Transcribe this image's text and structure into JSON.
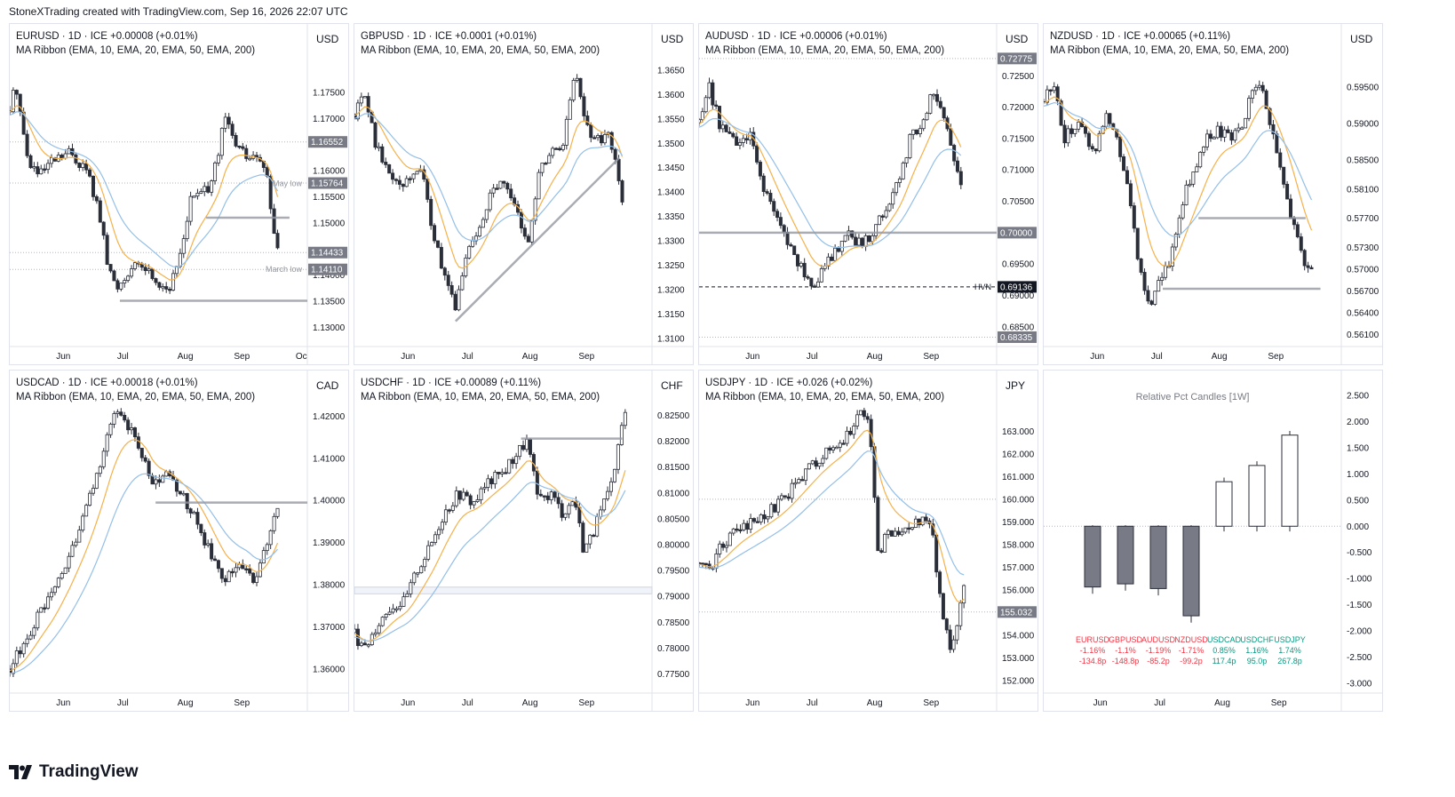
{
  "header": {
    "title": "StoneXTrading created with TradingView.com, Sep 16, 2026 22:07 UTC"
  },
  "brand": {
    "name": "TradingView"
  },
  "colors": {
    "candle_up": "#ffffff",
    "candle_down": "#2a2e39",
    "ema10": "#f5b14a",
    "ema20": "#94bfe8",
    "level": "#9598a1",
    "grid": "#f0f3fa",
    "label_bg": "#787b86",
    "negative": "#f23645",
    "positive": "#089981"
  },
  "panels": [
    {
      "symbol": "EURUSD",
      "header": "EURUSD · 1D · ICE  +0.00008 (+0.01%)",
      "study": "MA Ribbon (EMA, 10, EMA, 20, EMA, 50, EMA, 200)",
      "currency": "USD",
      "yticks": [
        "1.17500",
        "1.17000",
        "1.16000",
        "1.15500",
        "1.15000",
        "1.14000",
        "1.13500",
        "1.13000"
      ],
      "ymin": 1.1265,
      "ymax": 1.183,
      "xticks": [
        "Jun",
        "Jul",
        "Aug",
        "Sep",
        "Oc"
      ],
      "badges": [
        {
          "text": "1.16552",
          "v": 1.16552
        },
        {
          "text": "1.15764",
          "v": 1.15764
        },
        {
          "text": "1.14433",
          "v": 1.14433
        },
        {
          "text": "1.14110",
          "v": 1.1411
        }
      ],
      "annotations": [
        "May low",
        "March low"
      ],
      "hlines": [
        {
          "v": 1.1351,
          "from": 0.37,
          "to": 1.0
        },
        {
          "v": 1.151,
          "from": 0.66,
          "to": 0.94
        }
      ],
      "dotted": [
        1.16552,
        1.15764,
        1.14433,
        1.1411
      ],
      "path": [
        [
          0,
          1.1715
        ],
        [
          0.02,
          1.177
        ],
        [
          0.06,
          1.162
        ],
        [
          0.1,
          1.159
        ],
        [
          0.14,
          1.1615
        ],
        [
          0.2,
          1.1635
        ],
        [
          0.26,
          1.16
        ],
        [
          0.3,
          1.152
        ],
        [
          0.33,
          1.1415
        ],
        [
          0.36,
          1.1375
        ],
        [
          0.4,
          1.141
        ],
        [
          0.45,
          1.1418
        ],
        [
          0.5,
          1.1385
        ],
        [
          0.54,
          1.1375
        ],
        [
          0.57,
          1.1435
        ],
        [
          0.61,
          1.155
        ],
        [
          0.66,
          1.156
        ],
        [
          0.7,
          1.162
        ],
        [
          0.72,
          1.1705
        ],
        [
          0.76,
          1.165
        ],
        [
          0.8,
          1.1625
        ],
        [
          0.84,
          1.162
        ],
        [
          0.87,
          1.1575
        ],
        [
          0.89,
          1.146
        ],
        [
          0.9,
          1.1443
        ]
      ]
    },
    {
      "symbol": "GBPUSD",
      "header": "GBPUSD · 1D · ICE  +0.0001 (+0.01%)",
      "study": "MA Ribbon (EMA, 10, EMA, 20, EMA, 50, EMA, 200)",
      "currency": "USD",
      "yticks": [
        "1.3650",
        "1.3600",
        "1.3550",
        "1.3500",
        "1.3450",
        "1.3400",
        "1.3350",
        "1.3300",
        "1.3250",
        "1.3200",
        "1.3150",
        "1.3100"
      ],
      "ymin": 1.3085,
      "ymax": 1.369,
      "xticks": [
        "Jun",
        "Jul",
        "Aug",
        "Sep"
      ],
      "badges": [],
      "annotations": [],
      "hlines": [],
      "dotted": [],
      "trendline": [
        [
          0.34,
          1.3135
        ],
        [
          0.89,
          1.347
        ]
      ],
      "path": [
        [
          0,
          1.356
        ],
        [
          0.03,
          1.362
        ],
        [
          0.07,
          1.35
        ],
        [
          0.12,
          1.344
        ],
        [
          0.17,
          1.342
        ],
        [
          0.22,
          1.346
        ],
        [
          0.27,
          1.33
        ],
        [
          0.31,
          1.321
        ],
        [
          0.34,
          1.316
        ],
        [
          0.37,
          1.326
        ],
        [
          0.42,
          1.333
        ],
        [
          0.47,
          1.342
        ],
        [
          0.52,
          1.34
        ],
        [
          0.56,
          1.333
        ],
        [
          0.58,
          1.329
        ],
        [
          0.62,
          1.344
        ],
        [
          0.66,
          1.348
        ],
        [
          0.7,
          1.35
        ],
        [
          0.72,
          1.356
        ],
        [
          0.74,
          1.365
        ],
        [
          0.77,
          1.356
        ],
        [
          0.81,
          1.35
        ],
        [
          0.85,
          1.352
        ],
        [
          0.88,
          1.347
        ],
        [
          0.9,
          1.338
        ]
      ]
    },
    {
      "symbol": "AUDUSD",
      "header": "AUDUSD · 1D · ICE  +0.00006 (+0.01%)",
      "study": "MA Ribbon (EMA, 10, EMA, 20, EMA, 50, EMA, 200)",
      "currency": "USD",
      "yticks": [
        "0.72500",
        "0.72000",
        "0.71500",
        "0.71000",
        "0.70500",
        "0.70000",
        "0.69500",
        "0.69000",
        "0.68500"
      ],
      "ymin": 0.682,
      "ymax": 0.729,
      "xticks": [
        "Jun",
        "Jul",
        "Aug",
        "Sep"
      ],
      "badges": [
        {
          "text": "0.72775",
          "v": 0.72775
        },
        {
          "text": "0.70000",
          "v": 0.7
        },
        {
          "text": "0.69136",
          "v": 0.69136,
          "dark": true
        },
        {
          "text": "0.68335",
          "v": 0.68335
        }
      ],
      "annotations": [
        "HVN"
      ],
      "hlines": [
        {
          "v": 0.7,
          "from": 0.0,
          "to": 1.0
        }
      ],
      "dashed": [
        0.69136
      ],
      "dotted": [
        0.72775,
        0.68335
      ],
      "path": [
        [
          0,
          0.7175
        ],
        [
          0.03,
          0.724
        ],
        [
          0.07,
          0.717
        ],
        [
          0.12,
          0.714
        ],
        [
          0.17,
          0.7155
        ],
        [
          0.21,
          0.708
        ],
        [
          0.26,
          0.702
        ],
        [
          0.31,
          0.6975
        ],
        [
          0.35,
          0.694
        ],
        [
          0.38,
          0.6915
        ],
        [
          0.42,
          0.6945
        ],
        [
          0.46,
          0.6975
        ],
        [
          0.5,
          0.6995
        ],
        [
          0.55,
          0.698
        ],
        [
          0.58,
          0.7
        ],
        [
          0.63,
          0.7045
        ],
        [
          0.67,
          0.708
        ],
        [
          0.71,
          0.715
        ],
        [
          0.75,
          0.718
        ],
        [
          0.79,
          0.723
        ],
        [
          0.82,
          0.7185
        ],
        [
          0.85,
          0.713
        ],
        [
          0.88,
          0.7085
        ]
      ]
    },
    {
      "symbol": "NZDUSD",
      "header": "NZDUSD · 1D · ICE  +0.00065 (+0.11%)",
      "study": "MA Ribbon (EMA, 10, EMA, 20, EMA, 50, EMA, 200)",
      "currency": "USD",
      "yticks": [
        "0.59500",
        "0.59000",
        "0.58500",
        "0.58100",
        "0.57700",
        "0.57300",
        "0.57000",
        "0.56700",
        "0.56400",
        "0.56100"
      ],
      "ymin": 0.5595,
      "ymax": 0.6,
      "xticks": [
        "Jun",
        "Jul",
        "Aug",
        "Sep"
      ],
      "badges": [],
      "annotations": [],
      "hlines": [
        {
          "v": 0.577,
          "from": 0.52,
          "to": 0.88
        },
        {
          "v": 0.5673,
          "from": 0.4,
          "to": 0.93
        }
      ],
      "dotted": [],
      "path": [
        [
          0,
          0.593
        ],
        [
          0.03,
          0.596
        ],
        [
          0.07,
          0.588
        ],
        [
          0.12,
          0.59
        ],
        [
          0.17,
          0.586
        ],
        [
          0.21,
          0.592
        ],
        [
          0.25,
          0.587
        ],
        [
          0.29,
          0.58
        ],
        [
          0.32,
          0.57
        ],
        [
          0.35,
          0.565
        ],
        [
          0.39,
          0.568
        ],
        [
          0.43,
          0.572
        ],
        [
          0.47,
          0.58
        ],
        [
          0.51,
          0.584
        ],
        [
          0.55,
          0.588
        ],
        [
          0.59,
          0.589
        ],
        [
          0.63,
          0.588
        ],
        [
          0.67,
          0.59
        ],
        [
          0.7,
          0.595
        ],
        [
          0.73,
          0.596
        ],
        [
          0.77,
          0.588
        ],
        [
          0.8,
          0.583
        ],
        [
          0.84,
          0.576
        ],
        [
          0.87,
          0.571
        ],
        [
          0.9,
          0.57
        ]
      ]
    },
    {
      "symbol": "USDCAD",
      "header": "USDCAD · 1D · ICE  +0.00018 (+0.01%)",
      "study": "MA Ribbon (EMA, 10, EMA, 20, EMA, 50, EMA, 200)",
      "currency": "CAD",
      "yticks": [
        "1.42000",
        "1.41000",
        "1.40000",
        "1.39000",
        "1.38000",
        "1.37000",
        "1.36000"
      ],
      "ymin": 1.3545,
      "ymax": 1.4245,
      "xticks": [
        "Jun",
        "Jul",
        "Aug",
        "Sep"
      ],
      "badges": [],
      "annotations": [],
      "hlines": [
        {
          "v": 1.3995,
          "from": 0.49,
          "to": 1.0
        }
      ],
      "dotted": [],
      "path": [
        [
          0,
          1.36
        ],
        [
          0.04,
          1.365
        ],
        [
          0.09,
          1.372
        ],
        [
          0.14,
          1.377
        ],
        [
          0.2,
          1.387
        ],
        [
          0.25,
          1.396
        ],
        [
          0.3,
          1.408
        ],
        [
          0.34,
          1.419
        ],
        [
          0.37,
          1.42
        ],
        [
          0.41,
          1.417
        ],
        [
          0.44,
          1.412
        ],
        [
          0.48,
          1.403
        ],
        [
          0.52,
          1.406
        ],
        [
          0.56,
          1.403
        ],
        [
          0.6,
          1.399
        ],
        [
          0.64,
          1.393
        ],
        [
          0.68,
          1.386
        ],
        [
          0.72,
          1.381
        ],
        [
          0.75,
          1.383
        ],
        [
          0.79,
          1.385
        ],
        [
          0.82,
          1.38
        ],
        [
          0.85,
          1.386
        ],
        [
          0.88,
          1.394
        ],
        [
          0.9,
          1.399
        ]
      ]
    },
    {
      "symbol": "USDCHF",
      "header": "USDCHF · 1D · ICE  +0.00089 (+0.11%)",
      "study": "MA Ribbon (EMA, 10, EMA, 20, EMA, 50, EMA, 200)",
      "currency": "CHF",
      "yticks": [
        "0.82500",
        "0.82000",
        "0.81500",
        "0.81000",
        "0.80500",
        "0.80000",
        "0.79500",
        "0.79000",
        "0.78500",
        "0.78000",
        "0.77500"
      ],
      "ymin": 0.7715,
      "ymax": 0.8285,
      "xticks": [
        "Jun",
        "Jul",
        "Aug",
        "Sep"
      ],
      "badges": [],
      "annotations": [],
      "hlines": [
        {
          "v": 0.8205,
          "from": 0.56,
          "to": 0.9
        }
      ],
      "band": [
        0.7905,
        0.7918
      ],
      "dotted": [],
      "path": [
        [
          0,
          0.783
        ],
        [
          0.03,
          0.779
        ],
        [
          0.07,
          0.784
        ],
        [
          0.12,
          0.788
        ],
        [
          0.17,
          0.789
        ],
        [
          0.21,
          0.795
        ],
        [
          0.25,
          0.799
        ],
        [
          0.3,
          0.806
        ],
        [
          0.35,
          0.81
        ],
        [
          0.4,
          0.808
        ],
        [
          0.45,
          0.812
        ],
        [
          0.5,
          0.814
        ],
        [
          0.55,
          0.818
        ],
        [
          0.58,
          0.82
        ],
        [
          0.62,
          0.808
        ],
        [
          0.66,
          0.81
        ],
        [
          0.7,
          0.806
        ],
        [
          0.74,
          0.809
        ],
        [
          0.77,
          0.799
        ],
        [
          0.8,
          0.802
        ],
        [
          0.84,
          0.808
        ],
        [
          0.87,
          0.812
        ],
        [
          0.89,
          0.821
        ],
        [
          0.91,
          0.825
        ]
      ]
    },
    {
      "symbol": "USDJPY",
      "header": "USDJPY · 1D · ICE  +0.026 (+0.02%)",
      "study": "MA Ribbon (EMA, 10, EMA, 20, EMA, 50, EMA, 200)",
      "currency": "JPY",
      "yticks": [
        "163.000",
        "162.000",
        "161.000",
        "160.000",
        "159.000",
        "158.000",
        "157.000",
        "156.000",
        "155.000",
        "154.000",
        "153.000",
        "152.000"
      ],
      "ymin": 151.5,
      "ymax": 164.5,
      "xticks": [
        "Jun",
        "Jul",
        "Aug",
        "Sep"
      ],
      "badges": [
        {
          "text": "155.032",
          "v": 155.032
        }
      ],
      "annotations": [],
      "hlines": [],
      "dotted": [
        160.0,
        155.032
      ],
      "path": [
        [
          0,
          157.2
        ],
        [
          0.03,
          156.8
        ],
        [
          0.07,
          157.8
        ],
        [
          0.12,
          158.6
        ],
        [
          0.17,
          158.9
        ],
        [
          0.22,
          159.3
        ],
        [
          0.27,
          159.8
        ],
        [
          0.32,
          160.6
        ],
        [
          0.37,
          161.4
        ],
        [
          0.42,
          162.0
        ],
        [
          0.46,
          162.3
        ],
        [
          0.5,
          162.8
        ],
        [
          0.53,
          163.6
        ],
        [
          0.56,
          163.9
        ],
        [
          0.58,
          162.0
        ],
        [
          0.6,
          157.5
        ],
        [
          0.63,
          158.4
        ],
        [
          0.67,
          158.7
        ],
        [
          0.71,
          158.6
        ],
        [
          0.75,
          159.3
        ],
        [
          0.78,
          158.9
        ],
        [
          0.81,
          155.5
        ],
        [
          0.84,
          153.5
        ],
        [
          0.87,
          154.5
        ],
        [
          0.89,
          156.3
        ]
      ]
    }
  ],
  "relative": {
    "title": "Relative Pct Candles [1W]",
    "yticks": [
      "2.500",
      "2.000",
      "1.500",
      "1.000",
      "0.500",
      "0.000",
      "-0.500",
      "-1.000",
      "-1.500",
      "-2.000",
      "-2.500",
      "-3.000"
    ],
    "xticks": [
      "Jun",
      "Jul",
      "Aug",
      "Sep"
    ]
  },
  "chart_data": {
    "type": "bar",
    "title": "Relative Pct Candles [1W]",
    "categories": [
      "EURUSD",
      "GBPUSD",
      "AUDUSD",
      "NZDUSD",
      "USDCAD",
      "USDCHF",
      "USDJPY"
    ],
    "values": [
      -1.16,
      -1.1,
      -1.19,
      -1.71,
      0.85,
      1.16,
      1.74
    ],
    "value_labels": [
      "-1.16%",
      "-1.1%",
      "-1.19%",
      "-1.71%",
      "0.85%",
      "1.16%",
      "1.74%"
    ],
    "pips": [
      "-134.8p",
      "-148.8p",
      "-85.2p",
      "-99.2p",
      "117.4p",
      "95.0p",
      "267.8p"
    ],
    "ylim": [
      -3.1,
      2.6
    ],
    "xlabel": "",
    "ylabel": ""
  }
}
